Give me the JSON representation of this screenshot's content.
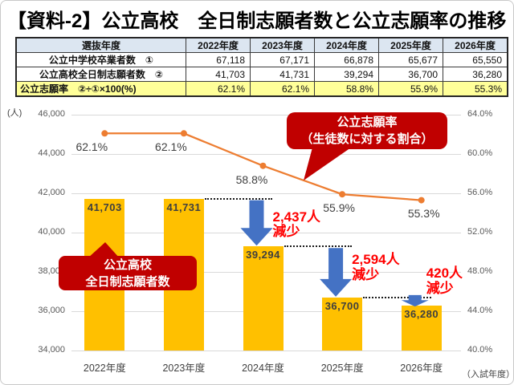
{
  "page": {
    "title": "【資料-2】公立高校　全日制志願者数と公立志願率の推移"
  },
  "table": {
    "header": {
      "label": "選抜年度",
      "years": [
        "2022年度",
        "2023年度",
        "2024年度",
        "2025年度",
        "2026年度"
      ]
    },
    "rows": [
      {
        "label": "公立中学校卒業者数　①",
        "values": [
          "67,118",
          "67,171",
          "66,878",
          "65,677",
          "65,550"
        ],
        "highlight": false,
        "label_align": "center"
      },
      {
        "label": "公立高校全日制志願者数　②",
        "values": [
          "41,703",
          "41,731",
          "39,294",
          "36,700",
          "36,280"
        ],
        "highlight": false,
        "label_align": "center"
      },
      {
        "label": "公立志願率　②÷①×100(%)",
        "values": [
          "62.1%",
          "62.1%",
          "58.8%",
          "55.9%",
          "55.3%"
        ],
        "highlight": true,
        "label_align": "left"
      }
    ]
  },
  "chart_data": {
    "type": "bar",
    "subtype": "combo bar+line, dual axis",
    "categories": [
      "2022年度",
      "2023年度",
      "2024年度",
      "2025年度",
      "2026年度"
    ],
    "series": [
      {
        "name": "公立高校全日制志願者数",
        "type": "bar",
        "axis": "left",
        "values": [
          41703,
          41731,
          39294,
          36700,
          36280
        ],
        "labels": [
          "41,703",
          "41,731",
          "39,294",
          "36,700",
          "36,280"
        ],
        "color": "#FFC000"
      },
      {
        "name": "公立志願率",
        "type": "line",
        "axis": "right",
        "values": [
          62.1,
          62.1,
          58.8,
          55.9,
          55.3
        ],
        "labels": [
          "62.1%",
          "62.1%",
          "58.8%",
          "55.9%",
          "55.3%"
        ],
        "color": "#ED7D31"
      }
    ],
    "left_axis": {
      "unit": "(人)",
      "min": 34000,
      "max": 46000,
      "step": 2000,
      "tick_labels": [
        "46,000",
        "44,000",
        "42,000",
        "40,000",
        "38,000",
        "36,000",
        "34,000"
      ]
    },
    "right_axis": {
      "min": 40,
      "max": 64,
      "step": 4,
      "tick_labels": [
        "64.0%",
        "60.0%",
        "56.0%",
        "52.0%",
        "48.0%",
        "44.0%",
        "40.0%"
      ]
    },
    "x_axis_note": "（入試年度）",
    "grid": true,
    "legend": "none",
    "annotations": {
      "drops": [
        {
          "from": 1,
          "to": 2,
          "amount": "2,437人",
          "word": "減少"
        },
        {
          "from": 2,
          "to": 3,
          "amount": "2,594人",
          "word": "減少"
        },
        {
          "from": 3,
          "to": 4,
          "amount": "420人",
          "word": "減少"
        }
      ],
      "callouts": [
        {
          "id": "rate",
          "lines": [
            "公立志願率",
            "（生徒数に対する割合）"
          ]
        },
        {
          "id": "applicants",
          "lines": [
            "公立高校",
            "全日制志願者数"
          ]
        }
      ]
    },
    "colors": {
      "bar": "#FFC000",
      "line": "#ED7D31",
      "arrow": "#4472C4",
      "drop_text": "#FF0000",
      "callout_bg": "#C00000",
      "grid": "#D9D9D9"
    }
  }
}
